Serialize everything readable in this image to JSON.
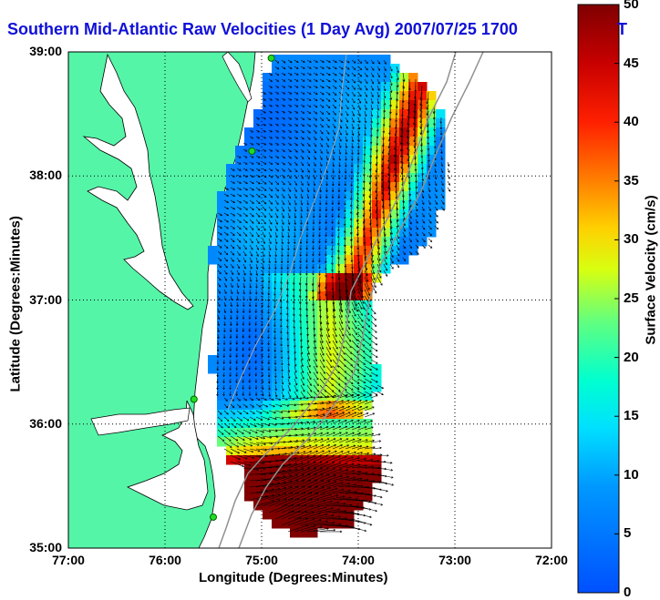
{
  "title": "Southern Mid-Atlantic Raw Velocities (1 Day Avg) 2007/07/25 1700",
  "title_tail": "T",
  "map": {
    "lon_range": [
      -77,
      -72
    ],
    "lat_range": [
      35,
      39
    ],
    "lon_ticks": [
      "77:00",
      "76:00",
      "75:00",
      "74:00",
      "73:00",
      "72:00"
    ],
    "lat_ticks": [
      "39:00",
      "38:00",
      "37:00",
      "36:00",
      "35:00"
    ],
    "xlabel": "Longitude (Degrees:Minutes)",
    "ylabel": "Latitude (Degrees:Minutes)",
    "grid": "dotted",
    "land_color": "#55f5a8",
    "water_color": "#ffffff",
    "stations": [
      {
        "lon": -74.9,
        "lat": 38.95
      },
      {
        "lon": -75.1,
        "lat": 38.2
      },
      {
        "lon": -75.7,
        "lat": 36.2
      },
      {
        "lon": -75.5,
        "lat": 35.25
      }
    ]
  },
  "colorbar": {
    "label": "Surface Velocity (cm/s)",
    "min": 0,
    "max": 50,
    "ticks": [
      "50",
      "45",
      "40",
      "35",
      "30",
      "25",
      "20",
      "15",
      "10",
      "5",
      "0"
    ],
    "colors": [
      "#0000ff",
      "#00bfff",
      "#00ffff",
      "#ffff00",
      "#ff8000",
      "#ff0000",
      "#800000"
    ]
  }
}
